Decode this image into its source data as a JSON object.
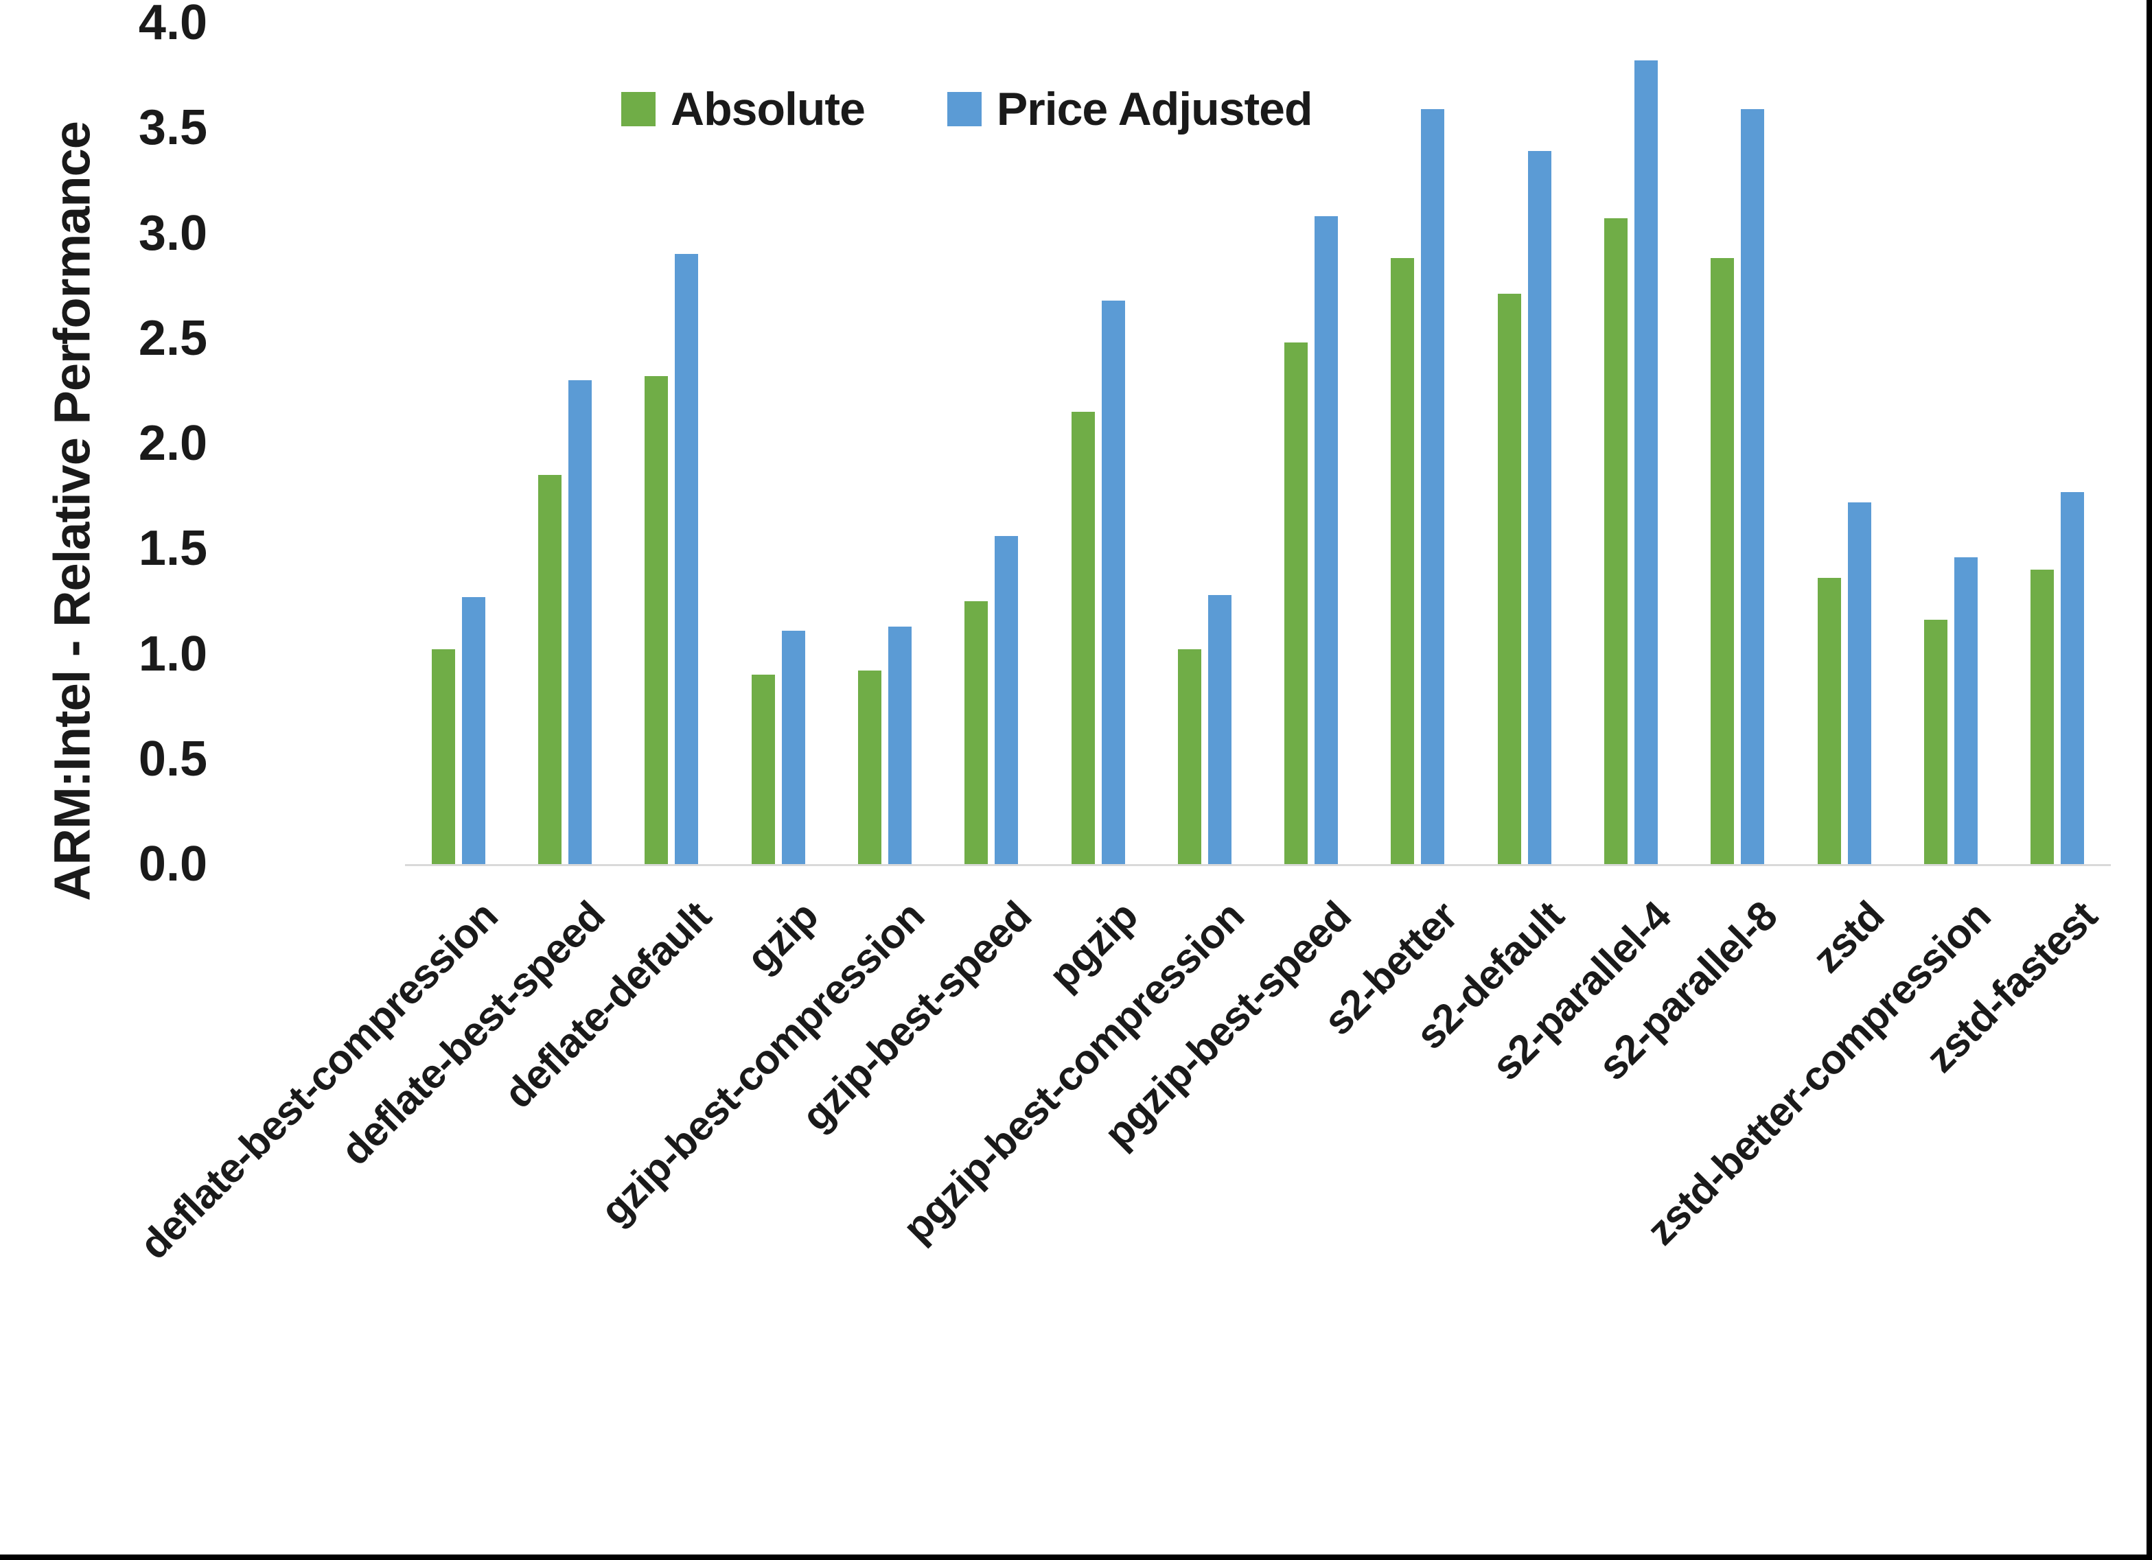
{
  "y_axis": {
    "title": "ARM:Intel - Relative Performance",
    "ticks": [
      "0.0",
      "0.5",
      "1.0",
      "1.5",
      "2.0",
      "2.5",
      "3.0",
      "3.5",
      "4.0"
    ],
    "min": 0,
    "max": 4
  },
  "legend": {
    "items": [
      {
        "label": "Absolute",
        "color": "#70AD47"
      },
      {
        "label": "Price Adjusted",
        "color": "#5B9BD5"
      }
    ]
  },
  "colors": {
    "absolute_green": "#70AD47",
    "price_adjusted_blue": "#5B9BD5",
    "axis_line": "#D9D9D9",
    "text": "#1A1A1A",
    "frame_border": "#000000"
  },
  "chart_data": {
    "type": "bar",
    "title": "",
    "xlabel": "",
    "ylabel": "ARM:Intel - Relative Performance",
    "ylim": [
      0,
      4
    ],
    "grid": false,
    "legend_position": "top",
    "categories": [
      "deflate-best-compression",
      "deflate-best-speed",
      "deflate-default",
      "gzip",
      "gzip-best-compression",
      "gzip-best-speed",
      "pgzip",
      "pgzip-best-compression",
      "pgzip-best-speed",
      "s2-better",
      "s2-default",
      "s2-parallel-4",
      "s2-parallel-8",
      "zstd",
      "zstd-better-compression",
      "zstd-fastest"
    ],
    "series": [
      {
        "name": "Absolute",
        "color": "#70AD47",
        "values": [
          1.02,
          1.85,
          2.32,
          0.9,
          0.92,
          1.25,
          2.15,
          1.02,
          2.48,
          2.88,
          2.71,
          3.07,
          2.88,
          1.36,
          1.16,
          1.4
        ]
      },
      {
        "name": "Price Adjusted",
        "color": "#5B9BD5",
        "values": [
          1.27,
          2.3,
          2.9,
          1.11,
          1.13,
          1.56,
          2.68,
          1.28,
          3.08,
          3.59,
          3.39,
          3.82,
          3.59,
          1.72,
          1.46,
          1.77
        ]
      }
    ]
  }
}
